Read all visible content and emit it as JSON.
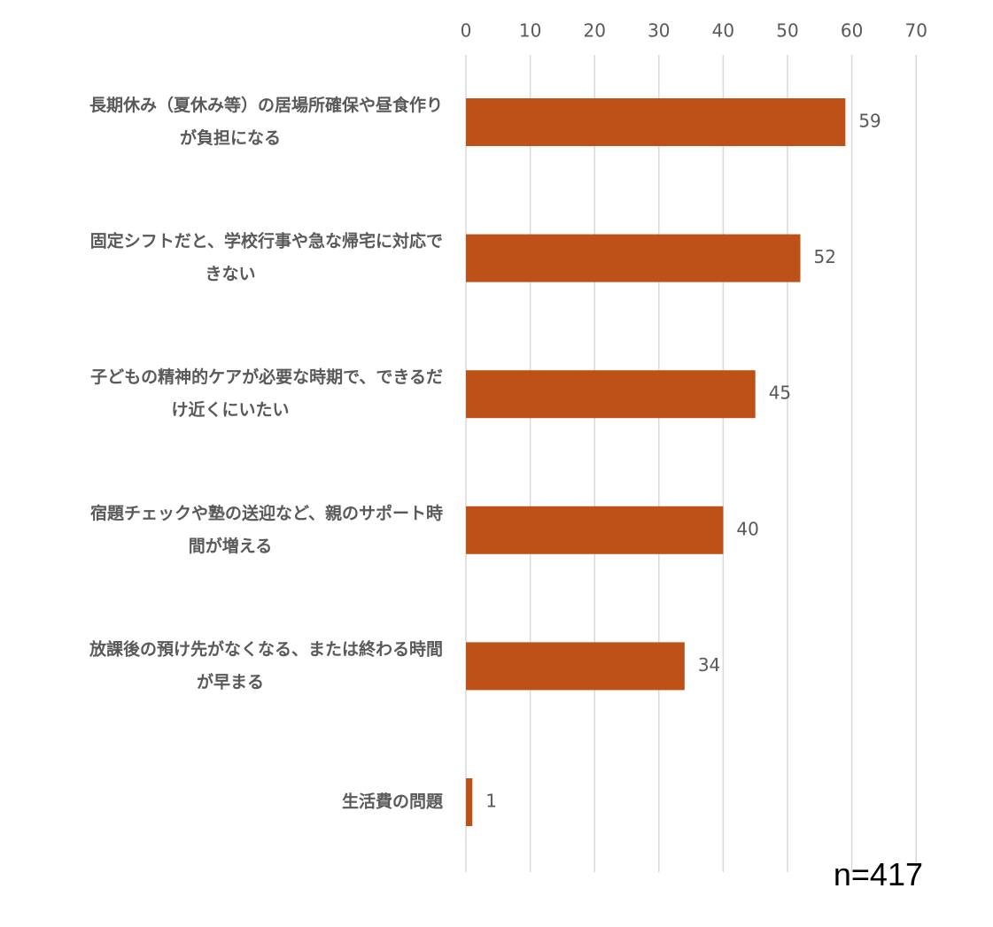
{
  "chart_data": {
    "type": "bar",
    "orientation": "horizontal",
    "categories": [
      [
        "長期休み（夏休み等）の居場所確保や昼食作り",
        "が負担になる"
      ],
      [
        "固定シフトだと、学校行事や急な帰宅に対応で",
        "きない"
      ],
      [
        "子どもの精神的ケアが必要な時期で、できるだ",
        "け近くにいたい"
      ],
      [
        "宿題チェックや塾の送迎など、親のサポート時",
        "間が増える"
      ],
      [
        "放課後の預け先がなくなる、または終わる時間",
        "が早まる"
      ],
      [
        "生活費の問題"
      ]
    ],
    "values": [
      59,
      52,
      45,
      40,
      34,
      1
    ],
    "xlim": [
      0,
      70
    ],
    "xticks": [
      0,
      10,
      20,
      30,
      40,
      50,
      60,
      70
    ],
    "x_axis_position": "top",
    "grid": true,
    "data_labels": true,
    "bar_color": "#BE5117",
    "note": "n=417"
  }
}
